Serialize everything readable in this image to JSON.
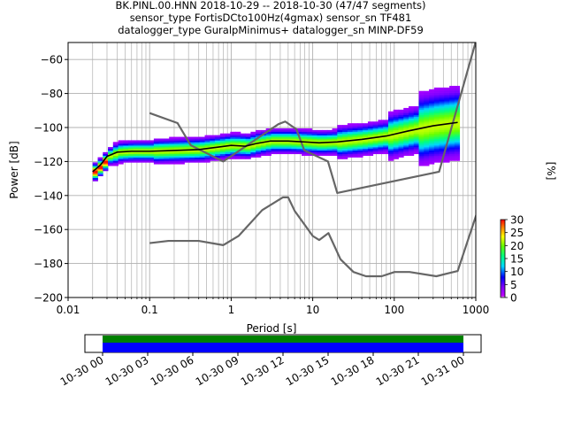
{
  "title_lines": [
    "BK.PINL.00.HNN   2018-10-29 -- 2018-10-30  (47/47 segments)",
    "sensor_type FortisDCto100Hz(4gmax) sensor_sn TF481",
    "datalogger_type GuralpMinimus+ datalogger_sn MINP-DF59"
  ],
  "chart_data": [
    {
      "type": "heatmap",
      "xlabel": "Period [s]",
      "ylabel": "Power [dB]",
      "x_scale": "log",
      "xlim": [
        0.01,
        1000
      ],
      "ylim": [
        -200,
        -50
      ],
      "x_ticks": [
        0.01,
        0.1,
        1,
        10,
        100,
        1000
      ],
      "x_tick_labels": [
        "0.01",
        "0.1",
        "1",
        "10",
        "100",
        "1000"
      ],
      "y_ticks": [
        -200,
        -180,
        -160,
        -140,
        -120,
        -100,
        -80,
        -60
      ],
      "y_tick_labels": [
        "−200",
        "−180",
        "−160",
        "−140",
        "−120",
        "−100",
        "−80",
        "−60"
      ],
      "grid": true,
      "noise_models": [
        {
          "name": "",
          "color": "#666666",
          "x": [
            0.1,
            0.22,
            0.32,
            0.8,
            3.8,
            4.6,
            6.3,
            7.9,
            15.4,
            20,
            354.8,
            10000
          ],
          "y": [
            -91.5,
            -97.4,
            -110.5,
            -120,
            -98,
            -96.5,
            -101,
            -113.5,
            -120,
            -138.5,
            -126,
            -48.5
          ]
        },
        {
          "name": "",
          "color": "#666666",
          "x": [
            0.1,
            0.17,
            0.4,
            0.8,
            1.24,
            2.4,
            4.3,
            5,
            6,
            10,
            12,
            15.6,
            21.9,
            31.6,
            45,
            70,
            101,
            154,
            328,
            600,
            10000
          ],
          "y": [
            -168,
            -166.7,
            -166.7,
            -169.2,
            -163.7,
            -148.6,
            -141.1,
            -141.1,
            -149,
            -163.8,
            -166.2,
            -162.1,
            -177.5,
            -185,
            -187.5,
            -187.5,
            -185,
            -185,
            -187.5,
            -184.4,
            -151.5
          ]
        }
      ],
      "mean_curve": {
        "x": [
          0.02,
          0.025,
          0.03,
          0.04,
          0.06,
          0.1,
          0.2,
          0.4,
          0.7,
          1,
          1.5,
          2,
          3,
          5,
          8,
          12,
          20,
          40,
          80,
          150,
          300,
          600
        ],
        "y": [
          -126,
          -122,
          -117,
          -114.5,
          -114,
          -114,
          -113.5,
          -113,
          -111.5,
          -110.5,
          -111,
          -109.5,
          -108,
          -108,
          -108.5,
          -109,
          -108.5,
          -107,
          -105,
          -102,
          -99,
          -97
        ]
      },
      "colorbar": {
        "label": "[%]",
        "min": 0,
        "max": 30,
        "ticks": [
          0,
          5,
          10,
          15,
          20,
          25,
          30
        ],
        "colormap": "pqlx"
      }
    },
    {
      "type": "timeline",
      "x_tick_labels": [
        "10-30 00",
        "10-30 03",
        "10-30 06",
        "10-30 09",
        "10-30 12",
        "10-30 15",
        "10-30 18",
        "10-30 21",
        "10-31 00"
      ],
      "data_coverage_color": "#008000",
      "psd_coverage_color": "#0000ff",
      "coverage_start": "10-30 00",
      "coverage_end": "10-31 00"
    }
  ]
}
